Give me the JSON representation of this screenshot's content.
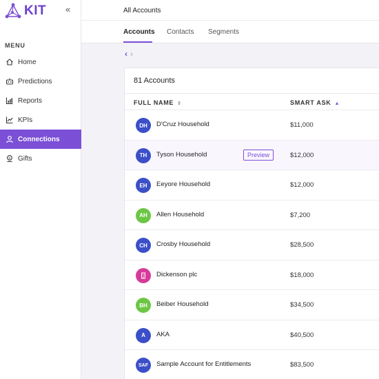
{
  "brand": {
    "name": "KIT",
    "accent": "#7b4fd6"
  },
  "sidebar": {
    "collapse_glyph": "«",
    "menu_label": "MENU",
    "items": [
      {
        "label": "Home",
        "icon": "home-icon",
        "active": false
      },
      {
        "label": "Predictions",
        "icon": "predictions-icon",
        "active": false
      },
      {
        "label": "Reports",
        "icon": "reports-icon",
        "active": false
      },
      {
        "label": "KPIs",
        "icon": "kpis-icon",
        "active": false
      },
      {
        "label": "Connections",
        "icon": "connections-icon",
        "active": true
      },
      {
        "label": "Gifts",
        "icon": "gifts-icon",
        "active": false
      }
    ]
  },
  "header": {
    "title": "All Accounts"
  },
  "tabs": [
    {
      "label": "Accounts",
      "active": true
    },
    {
      "label": "Contacts",
      "active": false
    },
    {
      "label": "Segments",
      "active": false
    }
  ],
  "pager": {
    "prev": "‹",
    "next": "›"
  },
  "table": {
    "count_label": "81 Accounts",
    "columns": {
      "name": "FULL NAME",
      "name_sort": "⇕",
      "ask": "SMART ASK",
      "ask_sort": "▲"
    },
    "preview_label": "Preview",
    "rows": [
      {
        "initials": "DH",
        "name": "D'Cruz Household",
        "ask": "$11,000",
        "color": "#3b4fc8"
      },
      {
        "initials": "TH",
        "name": "Tyson Household",
        "ask": "$12,000",
        "color": "#3b4fc8",
        "preview": true
      },
      {
        "initials": "EH",
        "name": "Eeyore Household",
        "ask": "$12,000",
        "color": "#3b4fc8"
      },
      {
        "initials": "AH",
        "name": "Allen Household",
        "ask": "$7,200",
        "color": "#6cc644"
      },
      {
        "initials": "CH",
        "name": "Crosby Household",
        "ask": "$28,500",
        "color": "#3b4fc8"
      },
      {
        "initials": "",
        "name": "Dickenson plc",
        "ask": "$18,000",
        "color": "#d63b9a",
        "icon": "building-icon"
      },
      {
        "initials": "BH",
        "name": "Beiber Household",
        "ask": "$34,500",
        "color": "#6cc644"
      },
      {
        "initials": "A",
        "name": "AKA",
        "ask": "$40,500",
        "color": "#3b4fc8"
      },
      {
        "initials": "SAF",
        "name": "Sample Account for Entitlements",
        "ask": "$83,500",
        "color": "#3b4fc8"
      }
    ]
  }
}
